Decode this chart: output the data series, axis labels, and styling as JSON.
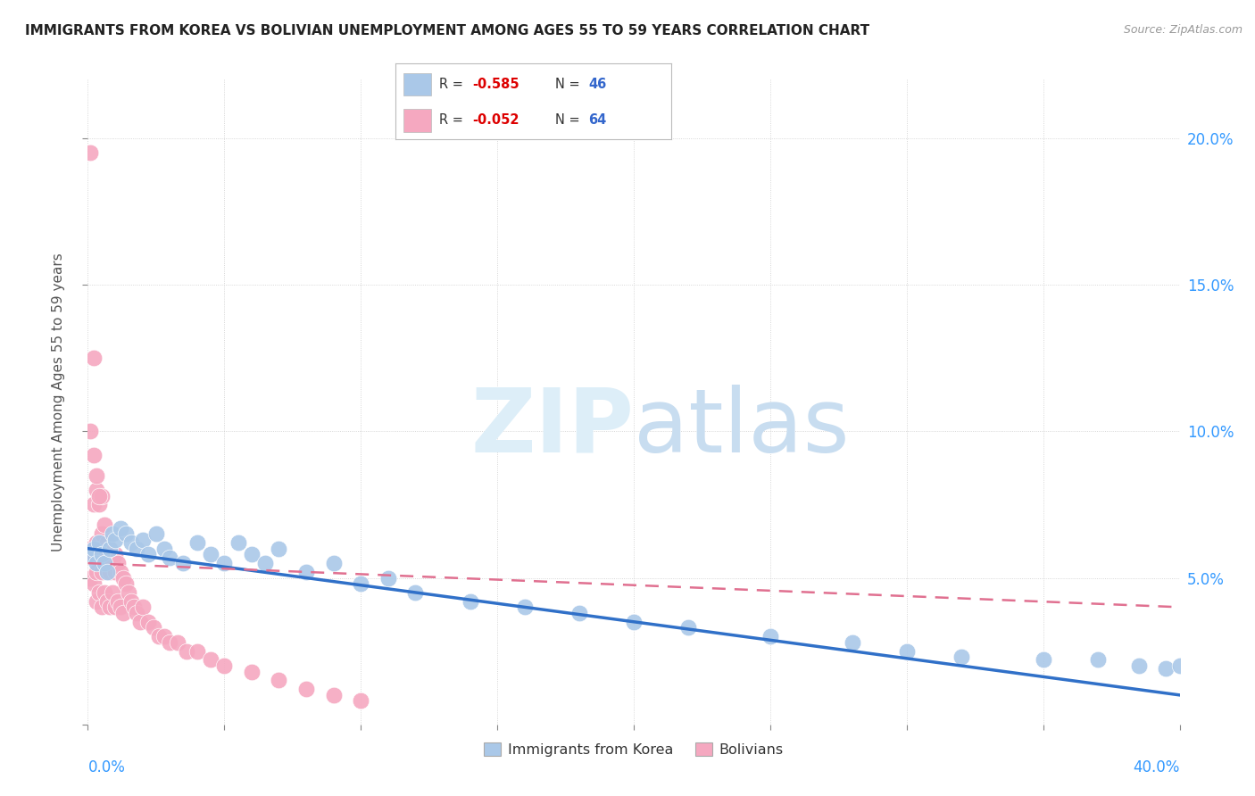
{
  "title": "IMMIGRANTS FROM KOREA VS BOLIVIAN UNEMPLOYMENT AMONG AGES 55 TO 59 YEARS CORRELATION CHART",
  "source": "Source: ZipAtlas.com",
  "ylabel": "Unemployment Among Ages 55 to 59 years",
  "xlim": [
    0.0,
    0.4
  ],
  "ylim": [
    0.0,
    0.22
  ],
  "yticks": [
    0.0,
    0.05,
    0.1,
    0.15,
    0.2
  ],
  "ytick_labels_right": [
    "",
    "5.0%",
    "10.0%",
    "15.0%",
    "20.0%"
  ],
  "xticks": [
    0.0,
    0.05,
    0.1,
    0.15,
    0.2,
    0.25,
    0.3,
    0.35,
    0.4
  ],
  "korea_R": -0.585,
  "korea_N": 46,
  "bolivia_R": -0.052,
  "bolivia_N": 64,
  "korea_color": "#aac8e8",
  "bolivia_color": "#f5a8c0",
  "korea_line_color": "#3070c8",
  "bolivia_line_color": "#e07090",
  "korea_points_x": [
    0.001,
    0.002,
    0.003,
    0.004,
    0.005,
    0.006,
    0.007,
    0.008,
    0.009,
    0.01,
    0.012,
    0.014,
    0.016,
    0.018,
    0.02,
    0.022,
    0.025,
    0.028,
    0.03,
    0.035,
    0.04,
    0.045,
    0.05,
    0.055,
    0.06,
    0.065,
    0.07,
    0.08,
    0.09,
    0.1,
    0.11,
    0.12,
    0.14,
    0.16,
    0.18,
    0.2,
    0.22,
    0.25,
    0.28,
    0.3,
    0.32,
    0.35,
    0.37,
    0.385,
    0.395,
    0.4
  ],
  "korea_points_y": [
    0.058,
    0.06,
    0.055,
    0.062,
    0.058,
    0.055,
    0.052,
    0.06,
    0.065,
    0.063,
    0.067,
    0.065,
    0.062,
    0.06,
    0.063,
    0.058,
    0.065,
    0.06,
    0.057,
    0.055,
    0.062,
    0.058,
    0.055,
    0.062,
    0.058,
    0.055,
    0.06,
    0.052,
    0.055,
    0.048,
    0.05,
    0.045,
    0.042,
    0.04,
    0.038,
    0.035,
    0.033,
    0.03,
    0.028,
    0.025,
    0.023,
    0.022,
    0.022,
    0.02,
    0.019,
    0.02
  ],
  "bolivia_points_x": [
    0.001,
    0.001,
    0.001,
    0.002,
    0.002,
    0.002,
    0.002,
    0.003,
    0.003,
    0.003,
    0.003,
    0.004,
    0.004,
    0.004,
    0.005,
    0.005,
    0.005,
    0.005,
    0.006,
    0.006,
    0.006,
    0.007,
    0.007,
    0.007,
    0.008,
    0.008,
    0.008,
    0.009,
    0.009,
    0.01,
    0.01,
    0.01,
    0.011,
    0.011,
    0.012,
    0.012,
    0.013,
    0.013,
    0.014,
    0.015,
    0.016,
    0.017,
    0.018,
    0.019,
    0.02,
    0.022,
    0.024,
    0.026,
    0.028,
    0.03,
    0.033,
    0.036,
    0.04,
    0.045,
    0.05,
    0.06,
    0.07,
    0.08,
    0.09,
    0.1,
    0.001,
    0.002,
    0.003,
    0.004
  ],
  "bolivia_points_y": [
    0.195,
    0.06,
    0.05,
    0.125,
    0.075,
    0.058,
    0.048,
    0.08,
    0.062,
    0.052,
    0.042,
    0.075,
    0.06,
    0.045,
    0.078,
    0.065,
    0.052,
    0.04,
    0.068,
    0.058,
    0.045,
    0.062,
    0.055,
    0.042,
    0.06,
    0.052,
    0.04,
    0.055,
    0.045,
    0.058,
    0.052,
    0.04,
    0.055,
    0.042,
    0.052,
    0.04,
    0.05,
    0.038,
    0.048,
    0.045,
    0.042,
    0.04,
    0.038,
    0.035,
    0.04,
    0.035,
    0.033,
    0.03,
    0.03,
    0.028,
    0.028,
    0.025,
    0.025,
    0.022,
    0.02,
    0.018,
    0.015,
    0.012,
    0.01,
    0.008,
    0.1,
    0.092,
    0.085,
    0.078
  ]
}
